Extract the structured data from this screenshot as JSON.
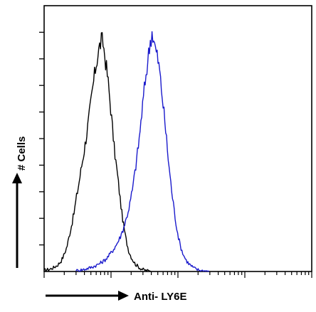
{
  "chart_data": {
    "type": "line",
    "title": "",
    "xlabel": "Anti- LY6E",
    "ylabel": "# Cells",
    "x_scale": "log",
    "xlim": [
      1,
      10000
    ],
    "ylim": [
      0,
      100
    ],
    "grid": false,
    "legend": "none",
    "series": [
      {
        "color": "#000000",
        "x": [
          1.0,
          1.2,
          1.4,
          1.6,
          1.8,
          2.0,
          2.2,
          2.4,
          2.6,
          2.8,
          3.0,
          3.3,
          3.6,
          4.0,
          4.4,
          4.8,
          5.2,
          5.6,
          6.0,
          6.4,
          6.8,
          7.2,
          7.6,
          8.0,
          8.5,
          9.0,
          9.5,
          10.0,
          10.6,
          11.2,
          12.0,
          12.8,
          13.6,
          14.5,
          15.5,
          16.5,
          17.5,
          18.5,
          20.0,
          21.5,
          23.0,
          25.0,
          27.0,
          29.0,
          31.0,
          33.0,
          35.0,
          37.0,
          40.0
        ],
        "y": [
          0.5,
          0.8,
          1.5,
          2.5,
          4.0,
          6.5,
          9.5,
          14.0,
          18.0,
          22.0,
          27.0,
          33.0,
          39.0,
          46.0,
          53.0,
          60.0,
          67.0,
          73.0,
          78.0,
          82.0,
          85.0,
          87.0,
          86.0,
          82.0,
          77.0,
          72.0,
          66.0,
          60.0,
          53.0,
          46.0,
          40.0,
          34.0,
          28.0,
          22.0,
          17.0,
          13.0,
          10.0,
          7.5,
          5.5,
          4.0,
          2.8,
          2.0,
          1.3,
          0.9,
          0.6,
          0.4,
          0.3,
          0.2,
          0.1
        ]
      },
      {
        "color": "#1a1acc",
        "x": [
          3.0,
          4.0,
          5.0,
          6.0,
          7.0,
          8.0,
          9.0,
          10.0,
          11.0,
          12.0,
          13.5,
          15.0,
          17.0,
          19.0,
          21.0,
          23.0,
          25.0,
          27.0,
          29.0,
          31.0,
          33.0,
          35.0,
          37.0,
          39.0,
          41.0,
          43.0,
          45.0,
          47.0,
          50.0,
          53.0,
          56.0,
          60.0,
          64.0,
          68.0,
          72.0,
          77.0,
          82.0,
          88.0,
          94.0,
          100.0,
          108.0,
          116.0,
          125.0,
          135.0,
          145.0,
          160.0,
          175.0,
          190.0,
          210.0,
          230.0,
          260.0,
          300.0
        ],
        "y": [
          0.3,
          0.8,
          1.5,
          2.3,
          3.2,
          4.2,
          5.5,
          7.0,
          8.5,
          10.0,
          12.5,
          15.5,
          20.0,
          25.0,
          31.0,
          38.0,
          45.0,
          52.0,
          60.0,
          67.0,
          73.0,
          78.0,
          83.0,
          87.0,
          90.0,
          88.0,
          85.0,
          83.0,
          80.0,
          76.0,
          70.0,
          63.0,
          56.0,
          49.0,
          42.0,
          35.0,
          29.0,
          23.0,
          18.0,
          14.0,
          10.0,
          7.5,
          5.5,
          4.0,
          3.0,
          2.0,
          1.3,
          0.8,
          0.5,
          0.3,
          0.2,
          0.1
        ]
      }
    ]
  }
}
